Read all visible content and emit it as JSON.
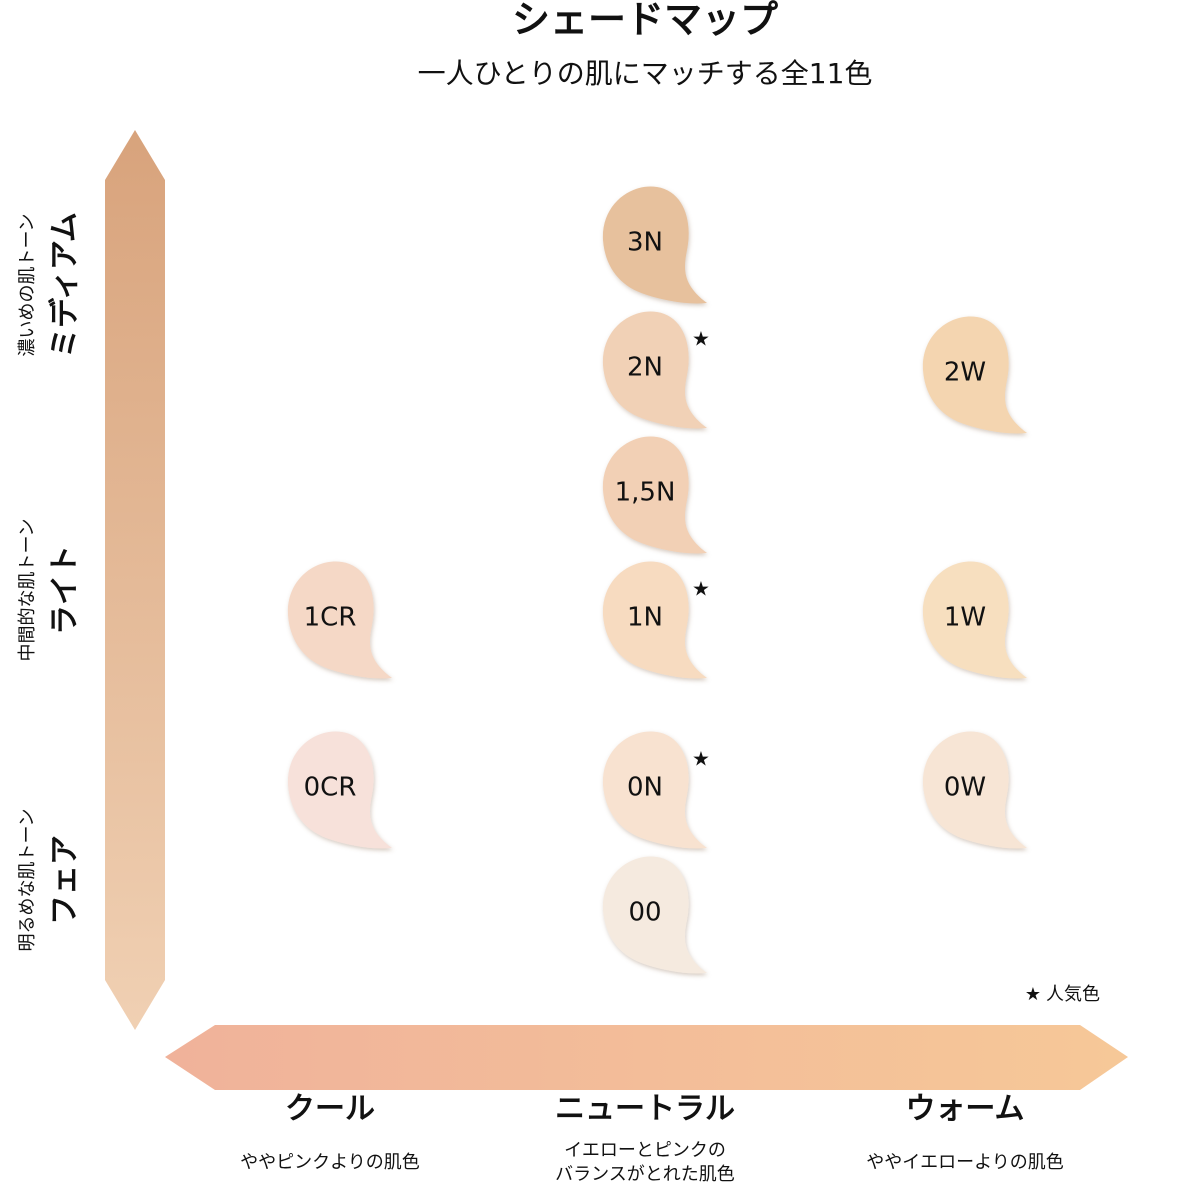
{
  "header": {
    "title": "シェードマップ",
    "subtitle": "一人ひとりの肌にマッチする全11色"
  },
  "rows": [
    {
      "label": "ミディアム",
      "description": "濃いめの肌トーン"
    },
    {
      "label": "ライト",
      "description": "中間的な肌トーン"
    },
    {
      "label": "フェア",
      "description": "明るめな肌トーン"
    }
  ],
  "columns": [
    {
      "label": "クール",
      "description": [
        "ややピンクよりの肌色"
      ],
      "swatches": [
        {
          "label": "1CR",
          "color": "#f5d8c6",
          "popular": false
        },
        {
          "label": "0CR",
          "color": "#f7e1da",
          "popular": false
        }
      ]
    },
    {
      "label": "ニュートラル",
      "description": [
        "イエローとピンクの",
        "バランスがとれた肌色"
      ],
      "swatches": [
        {
          "label": "3N",
          "color": "#e7c19d",
          "popular": false
        },
        {
          "label": "2N",
          "color": "#f1d1b6",
          "popular": true
        },
        {
          "label": "1,5N",
          "color": "#f2d0b5",
          "popular": false
        },
        {
          "label": "1N",
          "color": "#f7dbc0",
          "popular": true
        },
        {
          "label": "0N",
          "color": "#f8e2d0",
          "popular": true
        },
        {
          "label": "00",
          "color": "#f5eadf",
          "popular": false
        }
      ]
    },
    {
      "label": "ウォーム",
      "description": [
        "ややイエローよりの肌色"
      ],
      "swatches": [
        {
          "label": "2W",
          "color": "#f4d5b0",
          "popular": false
        },
        {
          "label": "1W",
          "color": "#f7dfbf",
          "popular": false
        },
        {
          "label": "0W",
          "color": "#f7e5d5",
          "popular": false
        }
      ]
    }
  ],
  "legend": {
    "mark": "★",
    "label": "人気色"
  }
}
